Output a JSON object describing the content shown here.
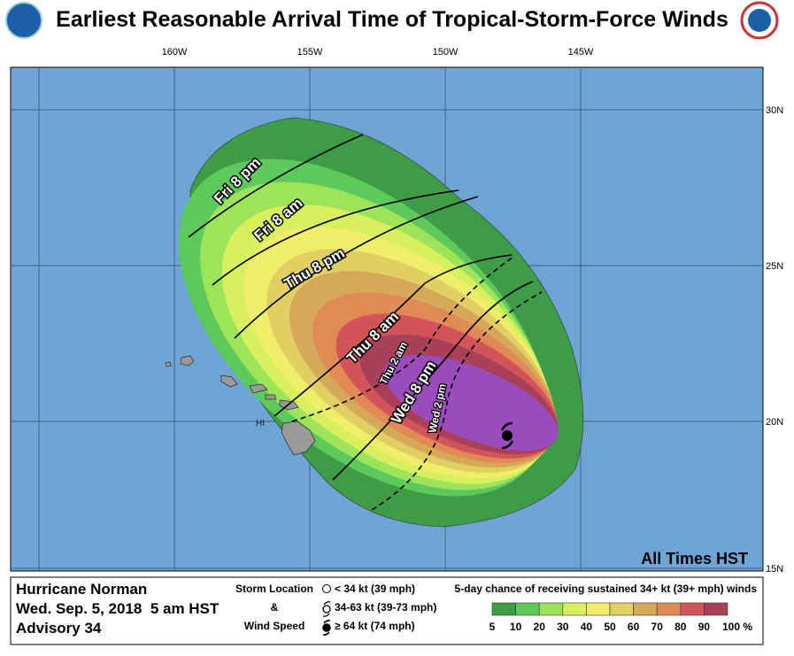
{
  "header": {
    "title": "Earliest Reasonable Arrival Time of Tropical-Storm-Force Winds"
  },
  "map": {
    "lon_labels": [
      "160W",
      "155W",
      "150W",
      "145W"
    ],
    "lat_labels": [
      "30N",
      "25N",
      "20N",
      "15N"
    ],
    "place_label": "HI",
    "time_labels": [
      "Fri 8 pm",
      "Fri 8 am",
      "Thu 8 pm",
      "Thu 8 am",
      "Wed 8 pm",
      "Thu 2 am",
      "Wed 2 pm"
    ],
    "note": "All Times HST"
  },
  "footer": {
    "storm": "Hurricane Norman",
    "date": "Wed. Sep. 5, 2018  5 am HST",
    "advisory": "Advisory 34",
    "key_title": [
      "Storm Location",
      "&",
      "Wind Speed"
    ],
    "key_items": [
      "< 34 kt (39 mph)",
      "34-63 kt (39-73 mph)",
      "≥ 64 kt (74 mph)"
    ],
    "legend_title": "5-day chance of receiving sustained 34+ kt (39+ mph) winds",
    "legend": [
      {
        "label": "5",
        "color": "#3f9c46"
      },
      {
        "label": "10",
        "color": "#5cc95a"
      },
      {
        "label": "20",
        "color": "#9ee45a"
      },
      {
        "label": "30",
        "color": "#d8ef5e"
      },
      {
        "label": "40",
        "color": "#eeee6a"
      },
      {
        "label": "50",
        "color": "#e2cf63"
      },
      {
        "label": "60",
        "color": "#d6a85a"
      },
      {
        "label": "70",
        "color": "#e28a56"
      },
      {
        "label": "80",
        "color": "#d2545a"
      },
      {
        "label": "90",
        "color": "#a8405a"
      },
      {
        "label": "100 %",
        "color": "#9a4cbc"
      }
    ]
  }
}
